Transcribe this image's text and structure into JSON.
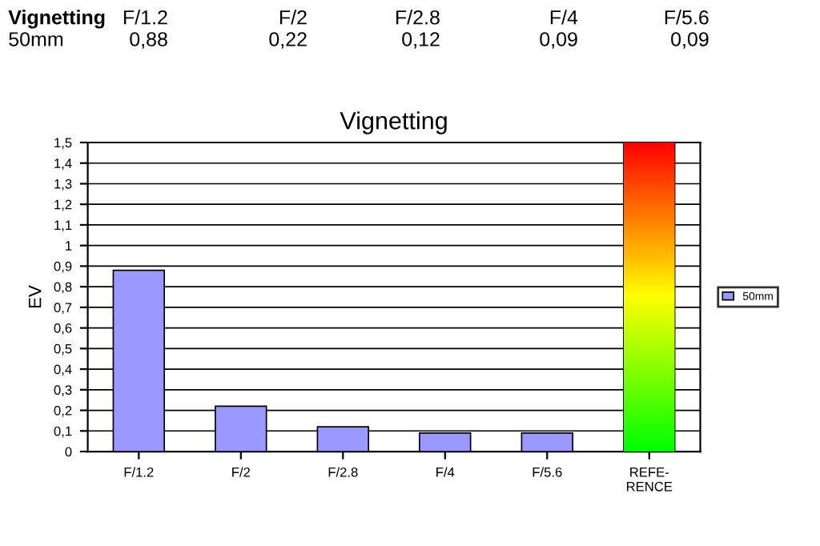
{
  "chart_data": {
    "type": "bar",
    "title": "Vignetting",
    "ylabel": "EV",
    "categories": [
      "F/1.2",
      "F/2",
      "F/2.8",
      "F/4",
      "F/5.6",
      "REFE-\nRENCE"
    ],
    "series": [
      {
        "name": "50mm",
        "color": "#9999ff",
        "values": [
          0.88,
          0.22,
          0.12,
          0.09,
          0.09,
          null
        ]
      },
      {
        "color": "#ff0000",
        "values": [
          null,
          null,
          null,
          null,
          null,
          1.5
        ]
      }
    ],
    "annotations": [
      "Vignetting",
      "F/1.2",
      "F/2",
      "F/2.8",
      "F/4",
      "F/5.6",
      "50mm",
      "0,88",
      "0,22",
      "0,12",
      "0,09",
      "0,09"
    ],
    "ylim": [
      0,
      1.5
    ],
    "yticks": [
      0,
      {
        "value": 0.1,
        "label": "0,1"
      },
      {
        "value": 0.2,
        "label": "0,2"
      },
      {
        "value": 0.3,
        "label": "0,3"
      },
      {
        "value": 0.4,
        "label": "0,4"
      },
      {
        "value": 0.5,
        "label": "0,5"
      },
      {
        "value": 0.6,
        "label": "0,6"
      },
      {
        "value": 0.7,
        "label": "0,7"
      },
      {
        "value": 0.8,
        "label": "0,8"
      },
      {
        "value": 0.9,
        "label": "0,9"
      },
      1,
      {
        "value": 1.1,
        "label": "1,1"
      },
      {
        "value": 1.2,
        "label": "1,2"
      },
      {
        "value": 1.3,
        "label": "1,3"
      },
      {
        "value": 1.4,
        "label": "1,4"
      },
      {
        "value": 1.5,
        "label": "1,5"
      }
    ],
    "grid": "y",
    "legend": "right"
  }
}
